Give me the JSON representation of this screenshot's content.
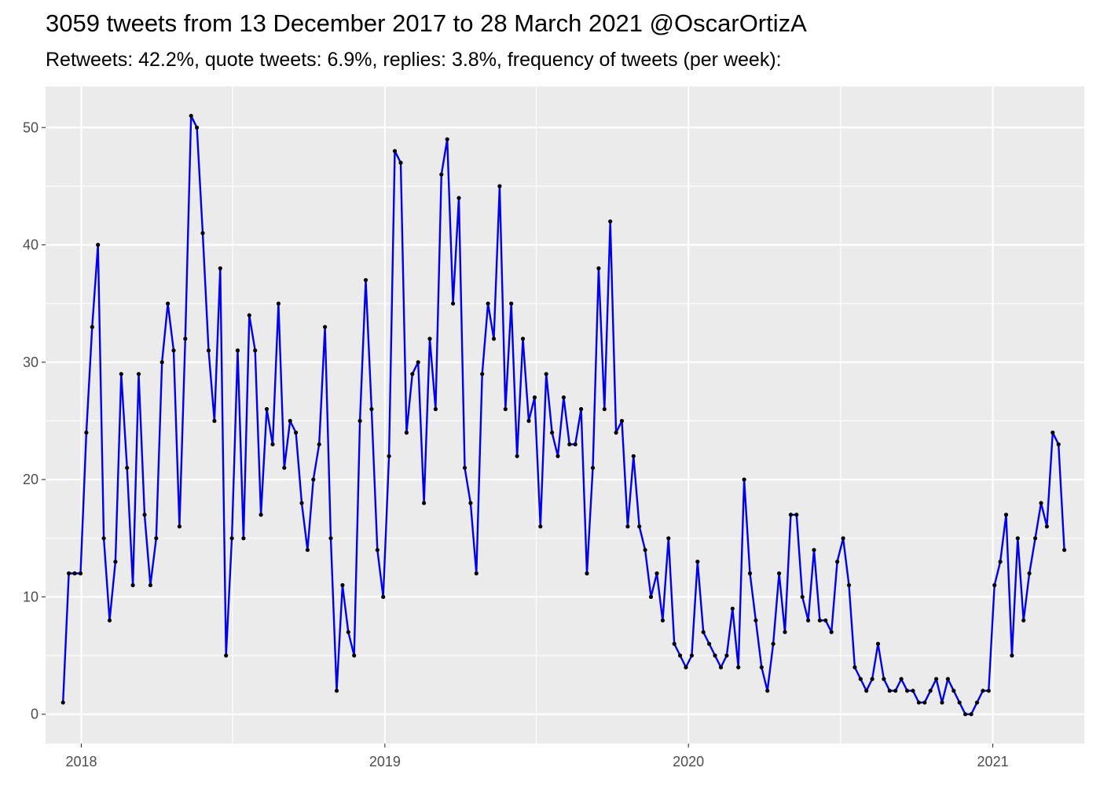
{
  "chart_data": {
    "type": "line",
    "title": "3059 tweets from 13 December 2017 to 28 March 2021 @OscarOrtizA",
    "subtitle": "Retweets: 42.2%, quote tweets: 6.9%, replies: 3.8%, frequency of tweets (per week):",
    "xlabel": "",
    "ylabel": "",
    "x_ticks": [
      "2018",
      "2019",
      "2020",
      "2021"
    ],
    "y_ticks": [
      0,
      10,
      20,
      30,
      40,
      50
    ],
    "xlim": [
      "2017-11-19",
      "2021-04-21"
    ],
    "ylim": [
      -2.5,
      53.5
    ],
    "grid": true,
    "series": [
      {
        "color": "#0000ee",
        "point_color": "#000000",
        "x": [
          "2017-12-10",
          "2017-12-17",
          "2017-12-24",
          "2017-12-31",
          "2018-01-07",
          "2018-01-14",
          "2018-01-21",
          "2018-01-28",
          "2018-02-04",
          "2018-02-11",
          "2018-02-18",
          "2018-02-25",
          "2018-03-04",
          "2018-03-11",
          "2018-03-18",
          "2018-03-25",
          "2018-04-01",
          "2018-04-08",
          "2018-04-15",
          "2018-04-22",
          "2018-04-29",
          "2018-05-06",
          "2018-05-13",
          "2018-05-20",
          "2018-05-27",
          "2018-06-03",
          "2018-06-10",
          "2018-06-17",
          "2018-06-24",
          "2018-07-01",
          "2018-07-08",
          "2018-07-15",
          "2018-07-22",
          "2018-07-29",
          "2018-08-05",
          "2018-08-12",
          "2018-08-19",
          "2018-08-26",
          "2018-09-02",
          "2018-09-09",
          "2018-09-16",
          "2018-09-23",
          "2018-09-30",
          "2018-10-07",
          "2018-10-14",
          "2018-10-21",
          "2018-10-28",
          "2018-11-04",
          "2018-11-11",
          "2018-11-18",
          "2018-11-25",
          "2018-12-02",
          "2018-12-09",
          "2018-12-16",
          "2018-12-23",
          "2018-12-30",
          "2019-01-06",
          "2019-01-13",
          "2019-01-20",
          "2019-01-27",
          "2019-02-03",
          "2019-02-10",
          "2019-02-17",
          "2019-02-24",
          "2019-03-03",
          "2019-03-10",
          "2019-03-17",
          "2019-03-24",
          "2019-03-31",
          "2019-04-07",
          "2019-04-14",
          "2019-04-21",
          "2019-04-28",
          "2019-05-05",
          "2019-05-12",
          "2019-05-19",
          "2019-05-26",
          "2019-06-02",
          "2019-06-09",
          "2019-06-16",
          "2019-06-23",
          "2019-06-30",
          "2019-07-07",
          "2019-07-14",
          "2019-07-21",
          "2019-07-28",
          "2019-08-04",
          "2019-08-11",
          "2019-08-18",
          "2019-08-25",
          "2019-09-01",
          "2019-09-08",
          "2019-09-15",
          "2019-09-22",
          "2019-09-29",
          "2019-10-06",
          "2019-10-13",
          "2019-10-20",
          "2019-10-27",
          "2019-11-03",
          "2019-11-10",
          "2019-11-17",
          "2019-11-24",
          "2019-12-01",
          "2019-12-08",
          "2019-12-15",
          "2019-12-22",
          "2019-12-29",
          "2020-01-05",
          "2020-01-12",
          "2020-01-19",
          "2020-01-26",
          "2020-02-02",
          "2020-02-09",
          "2020-02-16",
          "2020-02-23",
          "2020-03-01",
          "2020-03-08",
          "2020-03-15",
          "2020-03-22",
          "2020-03-29",
          "2020-04-05",
          "2020-04-12",
          "2020-04-19",
          "2020-04-26",
          "2020-05-03",
          "2020-05-10",
          "2020-05-17",
          "2020-05-24",
          "2020-05-31",
          "2020-06-07",
          "2020-06-14",
          "2020-06-21",
          "2020-06-28",
          "2020-07-05",
          "2020-07-12",
          "2020-07-19",
          "2020-07-26",
          "2020-08-02",
          "2020-08-09",
          "2020-08-16",
          "2020-08-23",
          "2020-08-30",
          "2020-09-06",
          "2020-09-13",
          "2020-09-20",
          "2020-09-27",
          "2020-10-04",
          "2020-10-11",
          "2020-10-18",
          "2020-10-25",
          "2020-11-01",
          "2020-11-08",
          "2020-11-15",
          "2020-11-22",
          "2020-11-29",
          "2020-12-06",
          "2020-12-13",
          "2020-12-20",
          "2020-12-27",
          "2021-01-03",
          "2021-01-10",
          "2021-01-17",
          "2021-01-24",
          "2021-01-31",
          "2021-02-07",
          "2021-02-14",
          "2021-02-21",
          "2021-02-28",
          "2021-03-07",
          "2021-03-14",
          "2021-03-21",
          "2021-03-28"
        ],
        "y": [
          1,
          12,
          12,
          12,
          24,
          33,
          40,
          15,
          8,
          13,
          29,
          21,
          11,
          29,
          17,
          11,
          15,
          30,
          35,
          31,
          16,
          32,
          51,
          50,
          41,
          31,
          25,
          38,
          5,
          15,
          31,
          15,
          34,
          31,
          17,
          26,
          23,
          35,
          21,
          25,
          24,
          18,
          14,
          20,
          23,
          33,
          15,
          2,
          11,
          7,
          5,
          25,
          37,
          26,
          14,
          10,
          22,
          48,
          47,
          24,
          29,
          30,
          18,
          32,
          26,
          46,
          49,
          35,
          44,
          21,
          18,
          12,
          29,
          35,
          32,
          45,
          26,
          35,
          22,
          32,
          25,
          27,
          16,
          29,
          24,
          22,
          27,
          23,
          23,
          26,
          12,
          21,
          38,
          26,
          42,
          24,
          25,
          16,
          22,
          16,
          14,
          10,
          12,
          8,
          15,
          6,
          5,
          4,
          5,
          13,
          7,
          6,
          5,
          4,
          5,
          9,
          4,
          20,
          12,
          8,
          4,
          2,
          6,
          12,
          7,
          17,
          17,
          10,
          8,
          14,
          8,
          8,
          7,
          13,
          15,
          11,
          4,
          3,
          2,
          3,
          6,
          3,
          2,
          2,
          3,
          2,
          2,
          1,
          1,
          2,
          3,
          1,
          3,
          2,
          1,
          0,
          0,
          1,
          2,
          2,
          11,
          13,
          17,
          5,
          15,
          8,
          12,
          15,
          18,
          16,
          24,
          23,
          14
        ]
      }
    ]
  }
}
